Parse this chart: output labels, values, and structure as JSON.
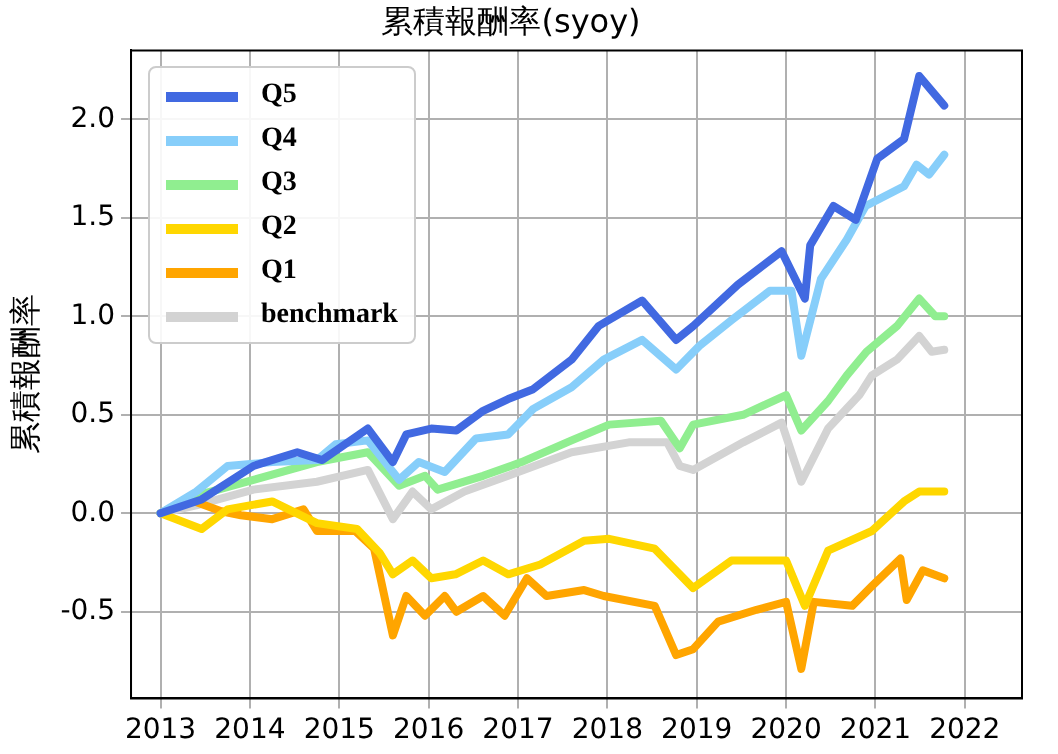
{
  "chart_data": {
    "type": "line",
    "title": "累積報酬率(syoy)",
    "ylabel": "累積報酬率",
    "xlim": [
      2012.67,
      2022.64
    ],
    "xticks": [
      2013,
      2014,
      2015,
      2016,
      2017,
      2018,
      2019,
      2020,
      2021,
      2022
    ],
    "ylim": [
      -0.94,
      2.35
    ],
    "yticks": [
      {
        "value": -0.5,
        "label": "-0.5"
      },
      {
        "value": 0,
        "label": "0.0"
      },
      {
        "value": 0.5,
        "label": "0.5"
      },
      {
        "value": 1,
        "label": "1.0"
      },
      {
        "value": 1.5,
        "label": "1.5"
      },
      {
        "value": 2,
        "label": "2.0"
      }
    ],
    "grid": true,
    "legend": "top left",
    "marker": "none",
    "line_style": "solid",
    "series": [
      {
        "name": "Q5",
        "color": "#4169e1",
        "x": [
          2013,
          2013.46,
          2014.04,
          2014.53,
          2014.81,
          2015.32,
          2015.6,
          2015.75,
          2016.03,
          2016.31,
          2016.61,
          2016.89,
          2017.17,
          2017.6,
          2017.9,
          2018.39,
          2018.77,
          2018.96,
          2019.46,
          2019.95,
          2020.21,
          2020.27,
          2020.53,
          2020.78,
          2021.02,
          2021.32,
          2021.49,
          2021.77
        ],
        "values": [
          0,
          0.07,
          0.24,
          0.31,
          0.27,
          0.43,
          0.26,
          0.4,
          0.43,
          0.42,
          0.52,
          0.58,
          0.63,
          0.78,
          0.95,
          1.08,
          0.88,
          0.95,
          1.16,
          1.33,
          1.09,
          1.36,
          1.56,
          1.49,
          1.8,
          1.9,
          2.22,
          2.07
        ]
      },
      {
        "name": "Q4",
        "color": "#87cefa",
        "x": [
          2013,
          2013.4,
          2013.75,
          2014.25,
          2014.75,
          2014.96,
          2015.32,
          2015.67,
          2015.89,
          2016.18,
          2016.53,
          2016.89,
          2017.17,
          2017.6,
          2017.96,
          2018.39,
          2018.77,
          2019.03,
          2019.39,
          2019.82,
          2020.06,
          2020.17,
          2020.39,
          2020.68,
          2020.89,
          2021.32,
          2021.46,
          2021.6,
          2021.77
        ],
        "values": [
          0,
          0.11,
          0.24,
          0.26,
          0.27,
          0.35,
          0.37,
          0.17,
          0.26,
          0.21,
          0.38,
          0.4,
          0.53,
          0.64,
          0.78,
          0.88,
          0.73,
          0.85,
          0.98,
          1.13,
          1.13,
          0.8,
          1.19,
          1.39,
          1.56,
          1.66,
          1.77,
          1.72,
          1.82
        ]
      },
      {
        "name": "Q3",
        "color": "#90ee90",
        "x": [
          2013,
          2013.4,
          2014.04,
          2014.75,
          2015.32,
          2015.67,
          2015.96,
          2016.1,
          2016.61,
          2017.04,
          2017.6,
          2018.02,
          2018.6,
          2018.81,
          2018.96,
          2019.52,
          2020,
          2020.17,
          2020.47,
          2020.68,
          2020.9,
          2021.24,
          2021.49,
          2021.67,
          2021.77
        ],
        "values": [
          0,
          0.09,
          0.17,
          0.26,
          0.31,
          0.14,
          0.19,
          0.12,
          0.19,
          0.26,
          0.37,
          0.45,
          0.47,
          0.33,
          0.45,
          0.5,
          0.6,
          0.42,
          0.57,
          0.7,
          0.82,
          0.95,
          1.09,
          1,
          1
        ]
      },
      {
        "name": "Q2",
        "color": "#ffd700",
        "x": [
          2013,
          2013.46,
          2013.75,
          2014.25,
          2014.75,
          2015.2,
          2015.45,
          2015.6,
          2015.82,
          2016.03,
          2016.3,
          2016.61,
          2016.89,
          2017.25,
          2017.74,
          2018.02,
          2018.53,
          2018.96,
          2019.39,
          2020,
          2020.21,
          2020.47,
          2020.96,
          2021.32,
          2021.49,
          2021.77
        ],
        "values": [
          0,
          -0.08,
          0.02,
          0.06,
          -0.05,
          -0.08,
          -0.2,
          -0.31,
          -0.24,
          -0.33,
          -0.31,
          -0.24,
          -0.31,
          -0.26,
          -0.14,
          -0.13,
          -0.18,
          -0.38,
          -0.24,
          -0.24,
          -0.47,
          -0.19,
          -0.09,
          0.06,
          0.11,
          0.11
        ]
      },
      {
        "name": "Q1",
        "color": "#ffa500",
        "x": [
          2013,
          2013.32,
          2013.68,
          2013.9,
          2014.25,
          2014.6,
          2014.75,
          2015.18,
          2015.39,
          2015.6,
          2015.75,
          2015.96,
          2016.18,
          2016.31,
          2016.61,
          2016.85,
          2017.1,
          2017.32,
          2017.74,
          2017.96,
          2018.53,
          2018.77,
          2018.96,
          2019.24,
          2019.67,
          2020,
          2020.17,
          2020.31,
          2020.74,
          2020.96,
          2021.28,
          2021.35,
          2021.53,
          2021.77
        ],
        "values": [
          0,
          0.07,
          0.01,
          -0.01,
          -0.03,
          0.02,
          -0.09,
          -0.09,
          -0.18,
          -0.62,
          -0.42,
          -0.52,
          -0.42,
          -0.5,
          -0.42,
          -0.52,
          -0.33,
          -0.42,
          -0.39,
          -0.42,
          -0.47,
          -0.72,
          -0.69,
          -0.55,
          -0.49,
          -0.45,
          -0.79,
          -0.45,
          -0.47,
          -0.37,
          -0.23,
          -0.44,
          -0.29,
          -0.33
        ]
      },
      {
        "name": "benchmark",
        "color": "#d3d3d3",
        "x": [
          2013,
          2013.4,
          2014.04,
          2014.75,
          2015.32,
          2015.6,
          2015.82,
          2016.03,
          2016.4,
          2016.89,
          2017.6,
          2018.24,
          2018.67,
          2018.81,
          2018.96,
          2019.52,
          2019.95,
          2020.17,
          2020.47,
          2020.82,
          2020.96,
          2021.24,
          2021.49,
          2021.63,
          2021.77
        ],
        "values": [
          0,
          0.04,
          0.12,
          0.16,
          0.22,
          -0.03,
          0.11,
          0.02,
          0.11,
          0.19,
          0.31,
          0.36,
          0.36,
          0.24,
          0.22,
          0.36,
          0.46,
          0.16,
          0.43,
          0.6,
          0.7,
          0.78,
          0.9,
          0.82,
          0.83
        ]
      }
    ]
  }
}
